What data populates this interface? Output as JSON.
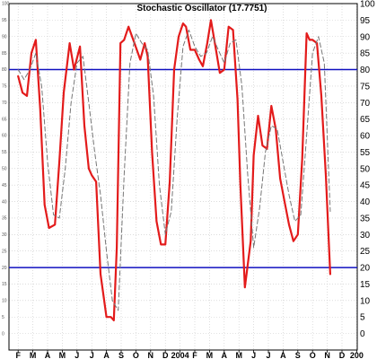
{
  "chart_data": {
    "type": "line",
    "title": "Stochastic Oscillator (17.7751)",
    "ylim": [
      -5,
      100
    ],
    "y_ticks": [
      0,
      5,
      10,
      15,
      20,
      25,
      30,
      35,
      40,
      45,
      50,
      55,
      60,
      65,
      70,
      75,
      80,
      85,
      90,
      95,
      100
    ],
    "y_tick_labels": [
      "0",
      "5",
      "10",
      "15",
      "20",
      "25",
      "30",
      "35",
      "40",
      "45",
      "50",
      "55",
      "60",
      "65",
      "70",
      "75",
      "80",
      "85",
      "90",
      "95",
      "100"
    ],
    "x_tick_labels": [
      "F",
      "M",
      "A",
      "M",
      "J",
      "J",
      "A",
      "S",
      "O",
      "N",
      "D",
      "2004",
      "F",
      "M",
      "A",
      "M",
      "J",
      "J",
      "A",
      "S",
      "O",
      "N",
      "D",
      "200"
    ],
    "reference_lines": [
      80,
      20
    ],
    "grid": true,
    "colors": {
      "main": "#e31b1b",
      "signal": "#777777",
      "reference": "#1010c0",
      "grid": "#c8c8c8"
    },
    "series": [
      {
        "role": "main",
        "x": [
          0,
          0.3,
          0.6,
          0.9,
          1.2,
          1.5,
          1.8,
          2.1,
          2.5,
          2.8,
          3.1,
          3.5,
          3.8,
          4.2,
          4.5,
          4.8,
          5.0,
          5.3,
          5.6,
          6.0,
          6.3,
          6.5,
          6.7,
          6.95,
          7.2,
          7.5,
          7.9,
          8.3,
          8.6,
          8.8,
          9.1,
          9.4,
          9.7,
          10.0,
          10.3,
          10.6,
          10.9,
          11.2,
          11.4,
          11.7,
          12.0,
          12.3,
          12.55,
          12.85,
          13.1,
          13.4,
          13.7,
          14.0,
          14.3,
          14.6,
          14.9,
          15.1,
          15.4,
          15.8,
          16.0,
          16.3,
          16.6,
          16.9,
          17.2,
          17.5,
          17.8,
          18.1,
          18.4,
          18.7,
          19.0,
          19.3,
          19.6,
          19.8,
          20.0,
          20.3,
          20.6,
          20.9,
          21.2
        ],
        "y": [
          78,
          73,
          72,
          85,
          89,
          68,
          39,
          32,
          33,
          52,
          73,
          88,
          80,
          87,
          63,
          50,
          48,
          46,
          18,
          5,
          5,
          4,
          26,
          88,
          89,
          93,
          88,
          83,
          88,
          84,
          55,
          34,
          27,
          27,
          46,
          80,
          90,
          94,
          93,
          86,
          86,
          83,
          81,
          88,
          95,
          87,
          79,
          80,
          93,
          92,
          71,
          45,
          14,
          28,
          54,
          66,
          57,
          56,
          69,
          62,
          47,
          40,
          33,
          28,
          30,
          53,
          91,
          89,
          89,
          88,
          72,
          48,
          18
        ]
      },
      {
        "role": "signal",
        "x": [
          0,
          0.4,
          0.8,
          1.2,
          1.6,
          2.0,
          2.4,
          2.8,
          3.2,
          3.6,
          4.0,
          4.4,
          4.8,
          5.2,
          5.6,
          6.0,
          6.4,
          6.8,
          7.2,
          7.6,
          8.0,
          8.4,
          8.8,
          9.2,
          9.6,
          10.0,
          10.4,
          10.8,
          11.2,
          11.6,
          12.0,
          12.4,
          12.8,
          13.2,
          13.6,
          14.0,
          14.4,
          14.8,
          15.2,
          15.6,
          16.0,
          16.4,
          16.8,
          17.2,
          17.6,
          18.0,
          18.4,
          18.8,
          19.2,
          19.6,
          20.0,
          20.4,
          20.8,
          21.2
        ],
        "y": [
          80,
          77,
          80,
          85,
          75,
          52,
          36,
          35,
          50,
          70,
          82,
          84,
          70,
          55,
          42,
          25,
          10,
          7,
          48,
          82,
          91,
          88,
          86,
          72,
          45,
          30,
          37,
          65,
          87,
          92,
          87,
          84,
          85,
          90,
          86,
          82,
          88,
          89,
          75,
          48,
          26,
          38,
          55,
          63,
          62,
          52,
          42,
          34,
          36,
          60,
          85,
          90,
          82,
          37
        ]
      }
    ]
  }
}
